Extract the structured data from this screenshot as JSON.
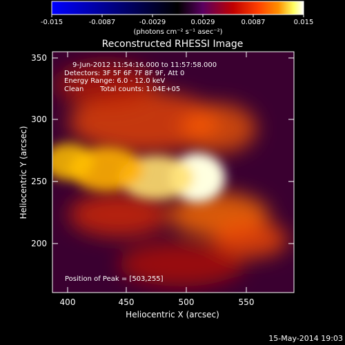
{
  "colorbar": {
    "tick_labels": [
      "-0.015",
      "-0.0087",
      "-0.0029",
      "0.0029",
      "0.0087",
      "0.015"
    ],
    "units": "(photons cm⁻² s⁻¹ asec⁻²)",
    "colors": [
      "#0000ff",
      "#000000",
      "#5a0060",
      "#b00000",
      "#ff3000",
      "#ff9000",
      "#ffff60",
      "#ffffff"
    ]
  },
  "plot": {
    "title": "Reconstructed RHESSI Image",
    "xlabel": "Heliocentric X (arcsec)",
    "ylabel": "Heliocentric Y (arcsec)",
    "x_ticks": [
      "400",
      "450",
      "500",
      "550"
    ],
    "y_ticks": [
      "350",
      "300",
      "250",
      "200"
    ],
    "x_range": [
      387,
      580
    ],
    "y_range": [
      162,
      357
    ]
  },
  "info": {
    "time_range": "9-Jun-2012 11:54:16.000 to 11:57:58.000",
    "detectors": "Detectors: 3F 5F 6F 7F 8F 9F, Att 0",
    "energy": "Energy Range: 6.0 - 12.0 keV",
    "clean_label": "Clean",
    "total_counts": "Total counts: 1.04E+05",
    "peak": "Position of Peak = [503,255]"
  },
  "peak_position": {
    "x": 503,
    "y": 255
  },
  "footer": {
    "timestamp": "15-May-2014 19:03"
  },
  "blobs": [
    {
      "x": 503,
      "y": 255,
      "rx": 22,
      "ry": 20,
      "color": "#ffffe0",
      "opacity": 1
    },
    {
      "x": 470,
      "y": 255,
      "rx": 30,
      "ry": 18,
      "color": "#ffe070",
      "opacity": 0.9
    },
    {
      "x": 430,
      "y": 262,
      "rx": 30,
      "ry": 18,
      "color": "#ffb000",
      "opacity": 0.9
    },
    {
      "x": 400,
      "y": 268,
      "rx": 20,
      "ry": 15,
      "color": "#ffc000",
      "opacity": 0.85
    },
    {
      "x": 520,
      "y": 225,
      "rx": 40,
      "ry": 18,
      "color": "#ff7000",
      "opacity": 0.8
    },
    {
      "x": 545,
      "y": 205,
      "rx": 30,
      "ry": 15,
      "color": "#ff5000",
      "opacity": 0.75
    },
    {
      "x": 460,
      "y": 300,
      "rx": 60,
      "ry": 25,
      "color": "#ff5000",
      "opacity": 0.7
    },
    {
      "x": 520,
      "y": 295,
      "rx": 30,
      "ry": 20,
      "color": "#ff6000",
      "opacity": 0.7
    },
    {
      "x": 440,
      "y": 225,
      "rx": 40,
      "ry": 18,
      "color": "#e83000",
      "opacity": 0.7
    },
    {
      "x": 490,
      "y": 185,
      "rx": 50,
      "ry": 18,
      "color": "#c01000",
      "opacity": 0.7
    },
    {
      "x": 430,
      "y": 330,
      "rx": 40,
      "ry": 18,
      "color": "#c02000",
      "opacity": 0.7
    }
  ]
}
